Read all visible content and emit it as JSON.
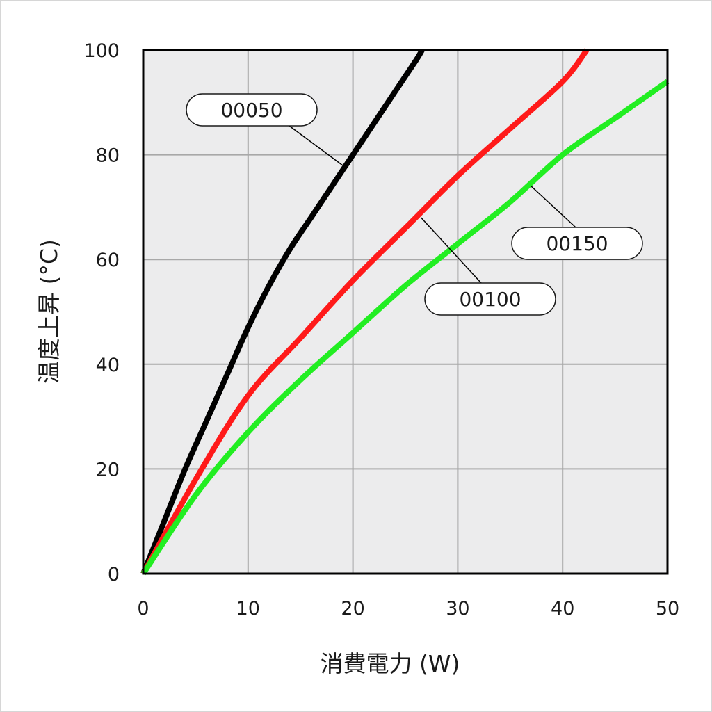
{
  "chart_data": {
    "type": "line",
    "xlabel": "消費電力 (W)",
    "ylabel": "温度上昇 (°C)",
    "xlim": [
      0,
      50
    ],
    "ylim": [
      0,
      100
    ],
    "xticks": [
      "0",
      "10",
      "20",
      "30",
      "40",
      "50"
    ],
    "yticks": [
      "0",
      "20",
      "40",
      "60",
      "80",
      "100"
    ],
    "grid": true,
    "series": [
      {
        "name": "00050",
        "color": "#000000",
        "points": [
          [
            0,
            0
          ],
          [
            2,
            10
          ],
          [
            4,
            20
          ],
          [
            6,
            29
          ],
          [
            8,
            38
          ],
          [
            10,
            47
          ],
          [
            12,
            55
          ],
          [
            14,
            62
          ],
          [
            16,
            68
          ],
          [
            18,
            74
          ],
          [
            20,
            80
          ],
          [
            22,
            86
          ],
          [
            24,
            92
          ],
          [
            26,
            98
          ],
          [
            26.6,
            100
          ]
        ]
      },
      {
        "name": "00100",
        "color": "#ff1a1a",
        "points": [
          [
            0,
            0
          ],
          [
            5,
            18
          ],
          [
            10,
            34
          ],
          [
            15,
            45
          ],
          [
            20,
            56
          ],
          [
            25,
            66
          ],
          [
            30,
            76
          ],
          [
            35,
            85
          ],
          [
            40,
            94
          ],
          [
            42.3,
            100
          ]
        ]
      },
      {
        "name": "00150",
        "color": "#22ee22",
        "points": [
          [
            0,
            0
          ],
          [
            5,
            15
          ],
          [
            10,
            27
          ],
          [
            15,
            37
          ],
          [
            20,
            46
          ],
          [
            25,
            55
          ],
          [
            30,
            63
          ],
          [
            35,
            71
          ],
          [
            40,
            80
          ],
          [
            45,
            87
          ],
          [
            50,
            94
          ]
        ]
      }
    ],
    "callouts": [
      {
        "series": 0,
        "text": "00050",
        "anchor": [
          19,
          78
        ]
      },
      {
        "series": 1,
        "text": "00100",
        "anchor": [
          26.5,
          68
        ]
      },
      {
        "series": 2,
        "text": "00150",
        "anchor": [
          37,
          74
        ]
      }
    ]
  }
}
